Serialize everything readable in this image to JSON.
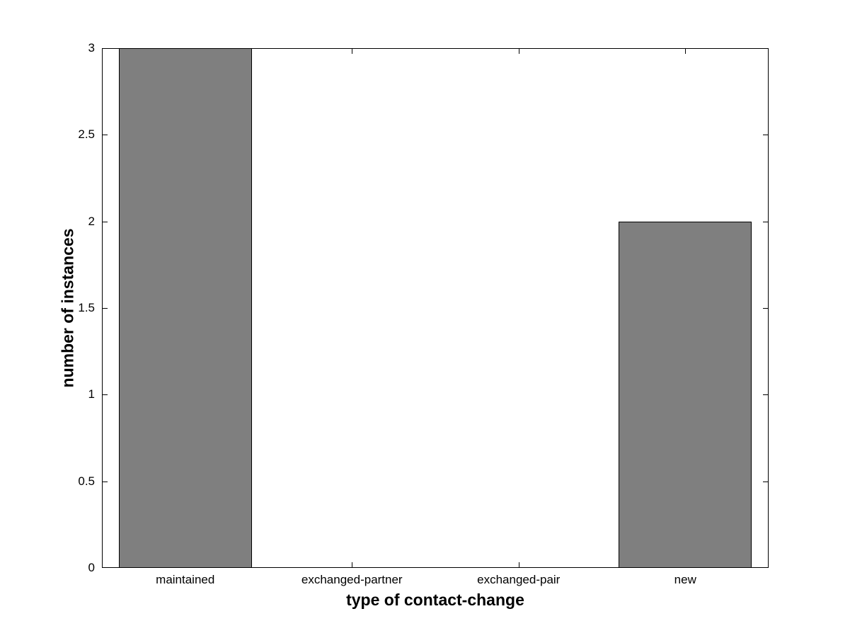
{
  "chart_data": {
    "type": "bar",
    "title": "",
    "categories": [
      "maintained",
      "exchanged-partner",
      "exchanged-pair",
      "new"
    ],
    "values": [
      3,
      0,
      0,
      2
    ],
    "xlabel": "type of contact-change",
    "ylabel": "number of instances",
    "ylim": [
      0,
      3
    ],
    "yticks": [
      0,
      0.5,
      1,
      1.5,
      2,
      2.5,
      3
    ],
    "ytick_labels": [
      "0",
      "0.5",
      "1",
      "1.5",
      "2",
      "2.5",
      "3"
    ],
    "bar_color": "#7f7f7f",
    "bar_edge_color": "#000000",
    "axis_color": "#000000",
    "background": "#ffffff",
    "bar_width_fraction": 0.8,
    "grid": false,
    "legend": null
  }
}
